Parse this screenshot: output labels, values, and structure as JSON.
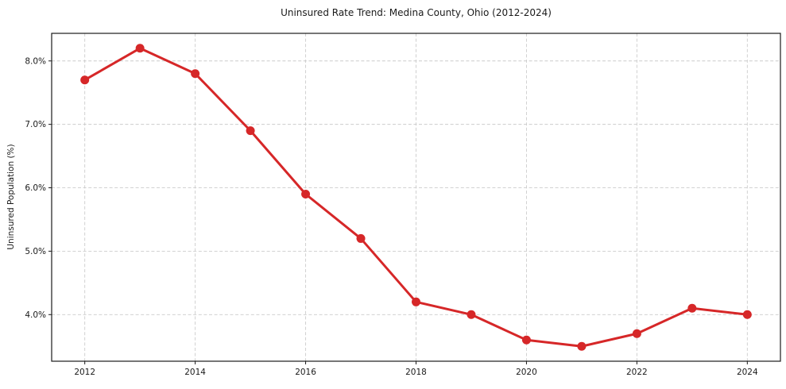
{
  "chart_data": {
    "type": "line",
    "title": "Uninsured Rate Trend: Medina County, Ohio (2012-2024)",
    "xlabel": "",
    "ylabel": "Uninsured Population (%)",
    "x": [
      2012,
      2013,
      2014,
      2015,
      2016,
      2017,
      2018,
      2019,
      2020,
      2021,
      2022,
      2023,
      2024
    ],
    "values": [
      7.7,
      8.2,
      7.8,
      6.9,
      5.9,
      5.2,
      4.2,
      4.0,
      3.6,
      3.5,
      3.7,
      4.1,
      4.0
    ],
    "x_ticks": [
      2012,
      2014,
      2016,
      2018,
      2020,
      2022,
      2024
    ],
    "y_ticks": [
      4.0,
      5.0,
      6.0,
      7.0,
      8.0
    ],
    "y_tick_suffix": "%",
    "y_tick_decimals": 1,
    "xlim": [
      2011.4,
      2024.6
    ],
    "ylim": [
      3.265,
      8.435
    ],
    "grid": true,
    "grid_style": "dashed",
    "legend_position": "none",
    "line_color": "#d62728",
    "grid_color": "#cccccc",
    "spine_color": "#1a1a1a",
    "text_color": "#1a1a1a",
    "marker": "circle"
  }
}
